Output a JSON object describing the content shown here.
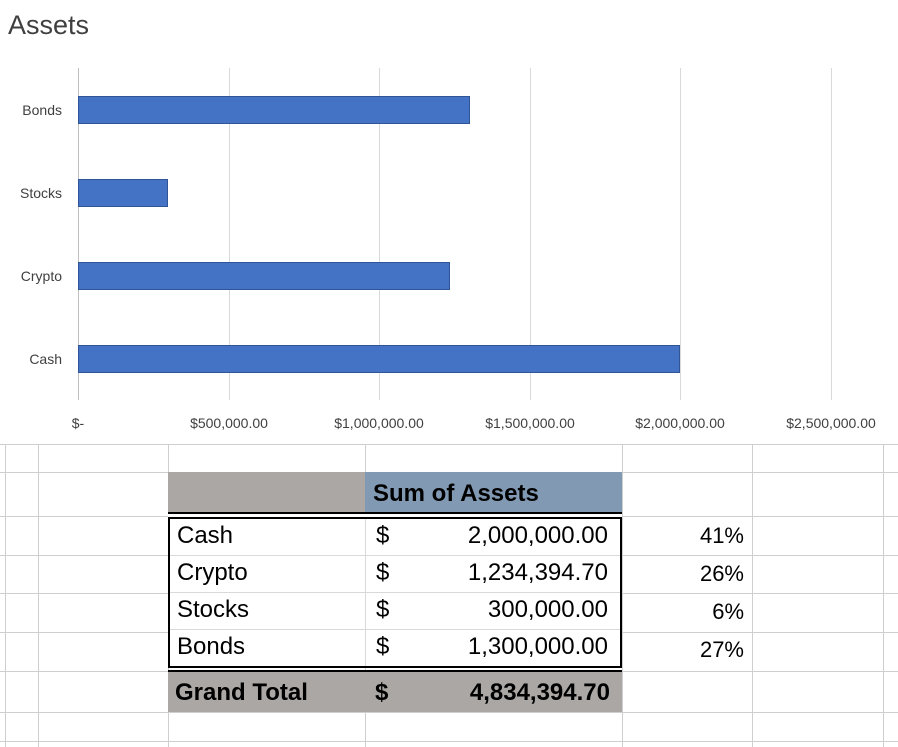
{
  "chart_data": {
    "type": "bar",
    "orientation": "horizontal",
    "title": "Assets",
    "categories": [
      "Bonds",
      "Stocks",
      "Crypto",
      "Cash"
    ],
    "values": [
      1300000,
      300000,
      1234394.7,
      2000000
    ],
    "x_tick_labels": [
      "$-",
      "$500,000.00",
      "$1,000,000.00",
      "$1,500,000.00",
      "$2,000,000.00",
      "$2,500,000.00"
    ],
    "x_tick_values": [
      0,
      500000,
      1000000,
      1500000,
      2000000,
      2500000
    ],
    "xlim": [
      0,
      2500000
    ],
    "grid": "vertical-only",
    "legend": false,
    "bar_color": "#4472C4",
    "bar_border_color": "#2F5597"
  },
  "pivot": {
    "header": {
      "value_label": "Sum of Assets"
    },
    "rows": [
      {
        "label": "Cash",
        "currency": "$",
        "amount": "2,000,000.00",
        "percent": "41%"
      },
      {
        "label": "Crypto",
        "currency": "$",
        "amount": "1,234,394.70",
        "percent": "26%"
      },
      {
        "label": "Stocks",
        "currency": "$",
        "amount": "300,000.00",
        "percent": "6%"
      },
      {
        "label": "Bonds",
        "currency": "$",
        "amount": "1,300,000.00",
        "percent": "27%"
      }
    ],
    "grand_total": {
      "label": "Grand Total",
      "currency": "$",
      "amount": "4,834,394.70"
    }
  },
  "colors": {
    "bar_fill": "#4472C4",
    "bar_border": "#2F5597",
    "chart_gridline": "#D9D9D9",
    "sheet_gridline": "#D0CECE",
    "pivot_header_gray": "#ABA7A4",
    "pivot_header_blue": "#8299B3",
    "grand_total_gray": "#ABA7A4",
    "chart_text": "#3F3F3F"
  }
}
